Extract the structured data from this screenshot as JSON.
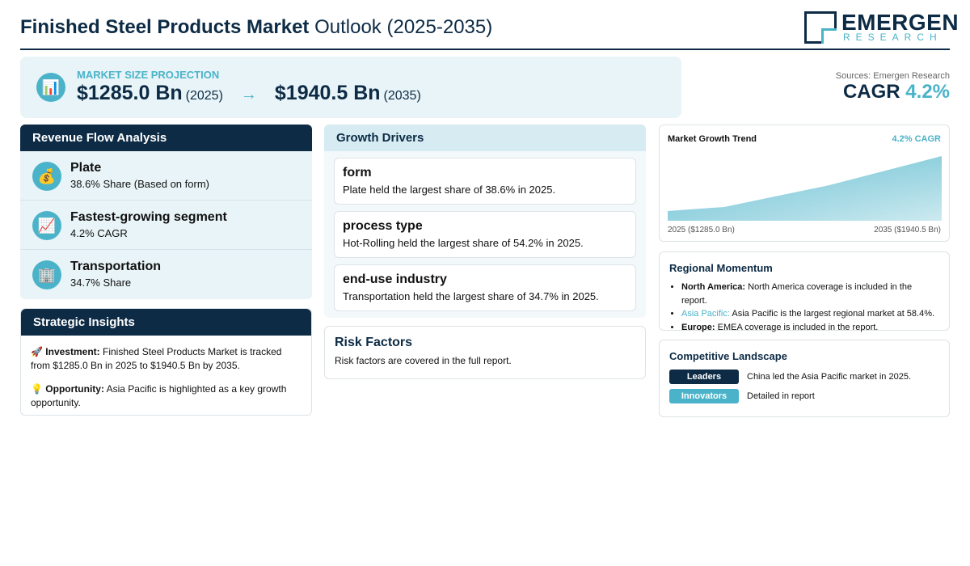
{
  "header": {
    "title_bold": "Finished Steel Products Market",
    "title_rest": "Outlook (2025-2035)",
    "logo_main": "EMERGEN",
    "logo_sub": "RESEARCH"
  },
  "projection": {
    "icon": "📊",
    "label": "MARKET SIZE PROJECTION",
    "start_value": "$1285.0 Bn",
    "start_year": "(2025)",
    "arrow": "→",
    "end_value": "$1940.5 Bn",
    "end_year": "(2035)"
  },
  "summary": {
    "sources": "Sources: Emergen Research",
    "cagr_label": "CAGR",
    "cagr_value": "4.2%"
  },
  "revenue_flow": {
    "title": "Revenue Flow Analysis",
    "items": [
      {
        "icon": "💰",
        "title": "Plate",
        "subtitle": "38.6% Share (Based on form)"
      },
      {
        "icon": "📈",
        "title": "Fastest-growing segment",
        "subtitle": "4.2% CAGR"
      },
      {
        "icon": "🏢",
        "title": "Transportation",
        "subtitle": "34.7% Share"
      }
    ]
  },
  "strategic_insights": {
    "title": "Strategic Insights",
    "items": [
      {
        "icon": "🚀",
        "label": "Investment:",
        "text": "Finished Steel Products Market is tracked from $1285.0 Bn in 2025 to $1940.5 Bn by 2035."
      },
      {
        "icon": "💡",
        "label": "Opportunity:",
        "text": "Asia Pacific is highlighted as a key growth opportunity."
      }
    ]
  },
  "growth_drivers": {
    "title": "Growth Drivers",
    "items": [
      {
        "title": "form",
        "text": "Plate held the largest share of 38.6% in 2025."
      },
      {
        "title": "process type",
        "text": "Hot-Rolling held the largest share of 54.2% in 2025."
      },
      {
        "title": "end-use industry",
        "text": "Transportation held the largest share of 34.7% in 2025."
      }
    ]
  },
  "risk_factors": {
    "title": "Risk Factors",
    "text": "Risk factors are covered in the full report."
  },
  "trend": {
    "title": "Market Growth Trend",
    "badge": "4.2% CAGR",
    "start_label": "2025 ($1285.0 Bn)",
    "end_label": "2035 ($1940.5 Bn)"
  },
  "regional": {
    "title": "Regional Momentum",
    "items": [
      {
        "region": "North America:",
        "text": "North America coverage is included in the report."
      },
      {
        "region": "Asia Pacific:",
        "text": "Asia Pacific is the largest regional market at 58.4%."
      },
      {
        "region": "Europe:",
        "text": "EMEA coverage is included in the report."
      }
    ]
  },
  "competitive": {
    "title": "Competitive Landscape",
    "items": [
      {
        "tag": "Leaders",
        "text": "China led the Asia Pacific market in 2025."
      },
      {
        "tag": "Innovators",
        "text": "Detailed in report"
      }
    ]
  }
}
